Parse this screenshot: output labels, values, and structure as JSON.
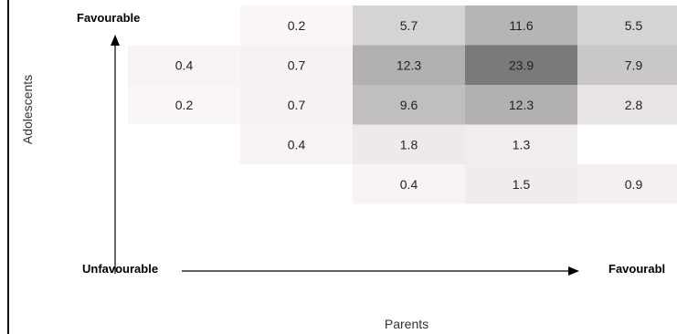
{
  "chart_data": {
    "type": "heatmap",
    "xlabel": "Parents",
    "ylabel": "Adolescents",
    "axis_labels": {
      "top": "Favourable",
      "left": "Unfavourable",
      "right": "Favourabl"
    },
    "rows": [
      [
        null,
        0.2,
        5.7,
        11.6,
        5.5
      ],
      [
        0.4,
        0.7,
        12.3,
        23.9,
        7.9
      ],
      [
        0.2,
        0.7,
        9.6,
        12.3,
        2.8
      ],
      [
        null,
        0.4,
        1.8,
        1.3,
        null
      ],
      [
        null,
        null,
        0.4,
        1.5,
        0.9
      ]
    ],
    "colors": {
      "cell_low": "#fdf8f8",
      "cell_high": "#7a7a7a",
      "text": "#222222",
      "axis": "#000000"
    }
  }
}
